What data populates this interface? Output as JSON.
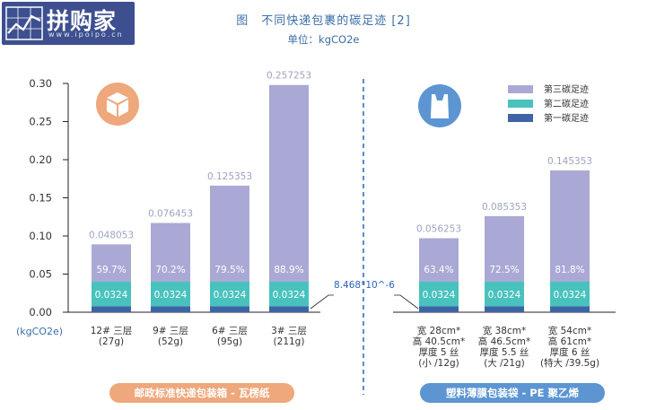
{
  "logo": {
    "title": "拼购家",
    "subtitle": "www.ipoipo.cn"
  },
  "colors": {
    "third": "#aaa9d5",
    "second": "#49c2bd",
    "first": "#3f64a6",
    "axis": "#222222",
    "divider": "#2a63b8",
    "text": "#333333",
    "label": "#9da3c2",
    "box_icon": "#efa77c",
    "bag_icon": "#5c95d2"
  },
  "chart_data": {
    "type": "bar",
    "stacked": true,
    "title": "图　不同快递包裹的碳足迹 [2]",
    "unit": "单位：kgCO2e",
    "ylabel": "(kgCO2e)",
    "ylim": [
      0,
      0.3
    ],
    "yticks": [
      "0.00",
      "0.05",
      "0.10",
      "0.15",
      "0.20",
      "0.25",
      "0.30"
    ],
    "legend_position": "top-right",
    "series": [
      {
        "name": "第三碳足迹",
        "color": "#aaa9d5"
      },
      {
        "name": "第二碳足迹",
        "color": "#49c2bd"
      },
      {
        "name": "第一碳足迹",
        "color": "#3f64a6"
      }
    ],
    "groups": [
      {
        "name": "邮政标准快递包装箱 - 瓦楞纸",
        "icon": "box-icon",
        "bars": [
          {
            "category": [
              "12# 三层",
              "(27g)"
            ],
            "total_label": "0.048053",
            "third_pct": "59.7%",
            "second": 0.0324,
            "second_label": "0.0324",
            "first": 0.0076,
            "total": 0.089
          },
          {
            "category": [
              "9# 三层",
              "(52g)"
            ],
            "total_label": "0.076453",
            "third_pct": "70.2%",
            "second": 0.0324,
            "second_label": "0.0324",
            "first": 0.0076,
            "total": 0.117
          },
          {
            "category": [
              "6# 三层",
              "(95g)"
            ],
            "total_label": "0.125353",
            "third_pct": "79.5%",
            "second": 0.0324,
            "second_label": "0.0324",
            "first": 0.0076,
            "total": 0.166
          },
          {
            "category": [
              "3# 三层",
              "(211g)"
            ],
            "total_label": "0.257253",
            "third_pct": "88.9%",
            "second": 0.0324,
            "second_label": "0.0324",
            "first": 0.0076,
            "total": 0.298
          }
        ]
      },
      {
        "name": "塑料薄膜包装袋 - PE 聚乙烯",
        "icon": "bag-icon",
        "bars": [
          {
            "category": [
              "宽 28cm*",
              "高 40.5cm*",
              "厚度 5 丝",
              "(小 /12g)"
            ],
            "total_label": "0.056253",
            "third_pct": "63.4%",
            "second": 0.0324,
            "second_label": "0.0324",
            "first": 0.0076,
            "total": 0.097
          },
          {
            "category": [
              "宽 38cm*",
              "高 46.5cm*",
              "厚度 5.5 丝",
              "(大 /21g)"
            ],
            "total_label": "0.085353",
            "third_pct": "72.5%",
            "second": 0.0324,
            "second_label": "0.0324",
            "first": 0.0076,
            "total": 0.126
          },
          {
            "category": [
              "宽 54cm*",
              "高 61cm*",
              "厚度 6 丝",
              "(特大 /39.5g)"
            ],
            "total_label": "0.145353",
            "third_pct": "81.8%",
            "second": 0.0324,
            "second_label": "0.0324",
            "first": 0.0076,
            "total": 0.186
          }
        ]
      }
    ],
    "annotation": "8.468*10^-6"
  }
}
